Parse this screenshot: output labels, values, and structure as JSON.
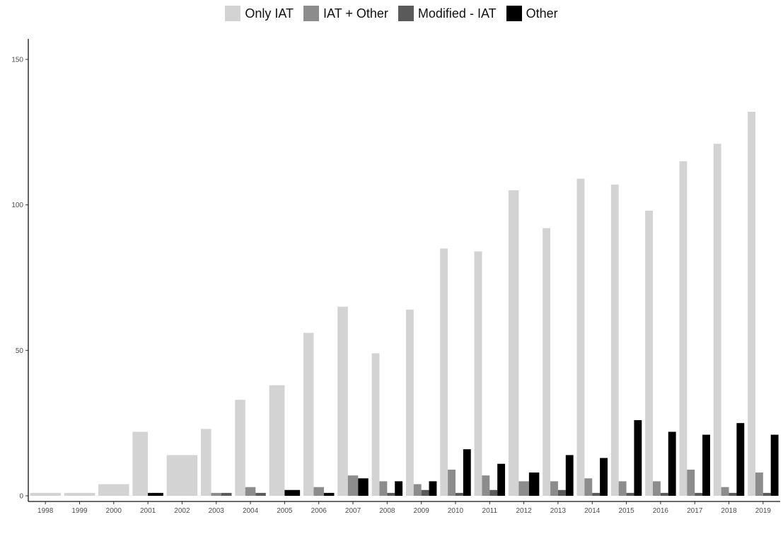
{
  "chart_data": {
    "type": "bar",
    "title": "",
    "xlabel": "",
    "ylabel": "",
    "categories": [
      "1998",
      "1999",
      "2000",
      "2001",
      "2002",
      "2003",
      "2004",
      "2005",
      "2006",
      "2007",
      "2008",
      "2009",
      "2010",
      "2011",
      "2012",
      "2013",
      "2014",
      "2015",
      "2016",
      "2017",
      "2018",
      "2019"
    ],
    "series": [
      {
        "name": "Only IAT",
        "color": "#d3d3d3",
        "values": [
          1,
          1,
          4,
          22,
          14,
          23,
          33,
          38,
          56,
          65,
          49,
          64,
          85,
          84,
          105,
          92,
          109,
          107,
          98,
          115,
          121,
          132
        ]
      },
      {
        "name": "IAT + Other",
        "color": "#8c8c8c",
        "values": [
          0,
          0,
          0,
          0,
          0,
          1,
          3,
          0,
          3,
          7,
          5,
          4,
          9,
          7,
          5,
          5,
          6,
          5,
          5,
          9,
          3,
          8
        ]
      },
      {
        "name": "Modified - IAT",
        "color": "#5a5a5a",
        "values": [
          0,
          0,
          0,
          0,
          0,
          1,
          1,
          0,
          0,
          0,
          1,
          2,
          1,
          2,
          0,
          2,
          1,
          1,
          1,
          1,
          1,
          1
        ]
      },
      {
        "name": "Other",
        "color": "#000000",
        "values": [
          0,
          0,
          0,
          1,
          0,
          0,
          0,
          2,
          1,
          6,
          5,
          5,
          16,
          11,
          8,
          14,
          13,
          26,
          22,
          21,
          25,
          21
        ]
      }
    ],
    "ylim": [
      0,
      150
    ],
    "yticks": [
      0,
      50,
      100,
      150
    ],
    "grid": false,
    "legend_position": "top"
  }
}
